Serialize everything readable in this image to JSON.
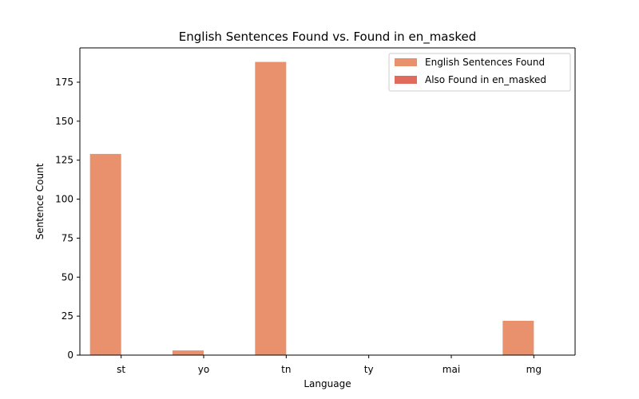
{
  "chart_data": {
    "type": "bar",
    "title": "English Sentences Found vs. Found in en_masked",
    "xlabel": "Language",
    "ylabel": "Sentence Count",
    "categories": [
      "st",
      "yo",
      "tn",
      "ty",
      "mai",
      "mg"
    ],
    "series": [
      {
        "name": "English Sentences Found",
        "values": [
          129,
          3,
          188,
          0,
          0,
          22
        ],
        "color": "#e9906d"
      },
      {
        "name": "Also Found in en_masked",
        "values": [
          0,
          0,
          0,
          0,
          0,
          0
        ],
        "color": "#e06a5c"
      }
    ],
    "ylim": [
      0,
      197
    ],
    "yticks": [
      0,
      25,
      50,
      75,
      100,
      125,
      150,
      175
    ],
    "grid": false,
    "legend_position": "top-right"
  }
}
